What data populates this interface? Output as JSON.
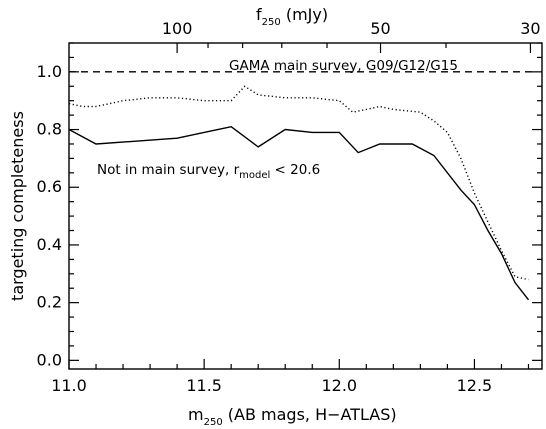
{
  "chart_data": {
    "type": "line",
    "xlabel": {
      "main": "m",
      "sub": "250",
      "rest": " (AB mags, H−ATLAS)"
    },
    "x2label": {
      "main": "f",
      "sub": "250",
      "rest": " (mJy)"
    },
    "ylabel": "targeting completeness",
    "xlim": [
      11.0,
      12.75
    ],
    "ylim": [
      -0.03,
      1.1
    ],
    "x_ticks": [
      11.0,
      11.5,
      12.0,
      12.5
    ],
    "x_tick_labels": [
      "11.0",
      "11.5",
      "12.0",
      "12.5"
    ],
    "y_ticks": [
      0.0,
      0.2,
      0.4,
      0.6,
      0.8,
      1.0
    ],
    "y_tick_labels": [
      "0.0",
      "0.2",
      "0.4",
      "0.6",
      "0.8",
      "1.0"
    ],
    "top_ticks": [
      100,
      50,
      30
    ],
    "top_tick_labels": [
      "100",
      "50",
      "30"
    ],
    "series": [
      {
        "name": "GAMA main survey, G09/G12/G15",
        "style": "dashed",
        "x": [
          11.0,
          12.72
        ],
        "y": [
          1.0,
          1.0
        ]
      },
      {
        "name": "",
        "style": "dotted",
        "x": [
          11.0,
          11.05,
          11.1,
          11.2,
          11.3,
          11.4,
          11.5,
          11.6,
          11.65,
          11.7,
          11.8,
          11.9,
          12.0,
          12.05,
          12.1,
          12.15,
          12.2,
          12.3,
          12.35,
          12.4,
          12.45,
          12.5,
          12.55,
          12.6,
          12.65,
          12.7
        ],
        "y": [
          0.89,
          0.88,
          0.88,
          0.9,
          0.91,
          0.91,
          0.9,
          0.9,
          0.95,
          0.92,
          0.91,
          0.91,
          0.9,
          0.86,
          0.87,
          0.88,
          0.87,
          0.86,
          0.83,
          0.79,
          0.7,
          0.58,
          0.48,
          0.38,
          0.29,
          0.28
        ]
      },
      {
        "name": "Not in main survey, r",
        "name_sub": "model",
        "name_rest": " < 20.6",
        "style": "solid",
        "x": [
          11.0,
          11.1,
          11.4,
          11.6,
          11.7,
          11.8,
          11.9,
          12.0,
          12.07,
          12.15,
          12.27,
          12.35,
          12.45,
          12.5,
          12.55,
          12.6,
          12.65,
          12.7
        ],
        "y": [
          0.8,
          0.75,
          0.77,
          0.81,
          0.74,
          0.8,
          0.79,
          0.79,
          0.72,
          0.75,
          0.75,
          0.71,
          0.59,
          0.54,
          0.45,
          0.37,
          0.27,
          0.21
        ]
      }
    ]
  }
}
